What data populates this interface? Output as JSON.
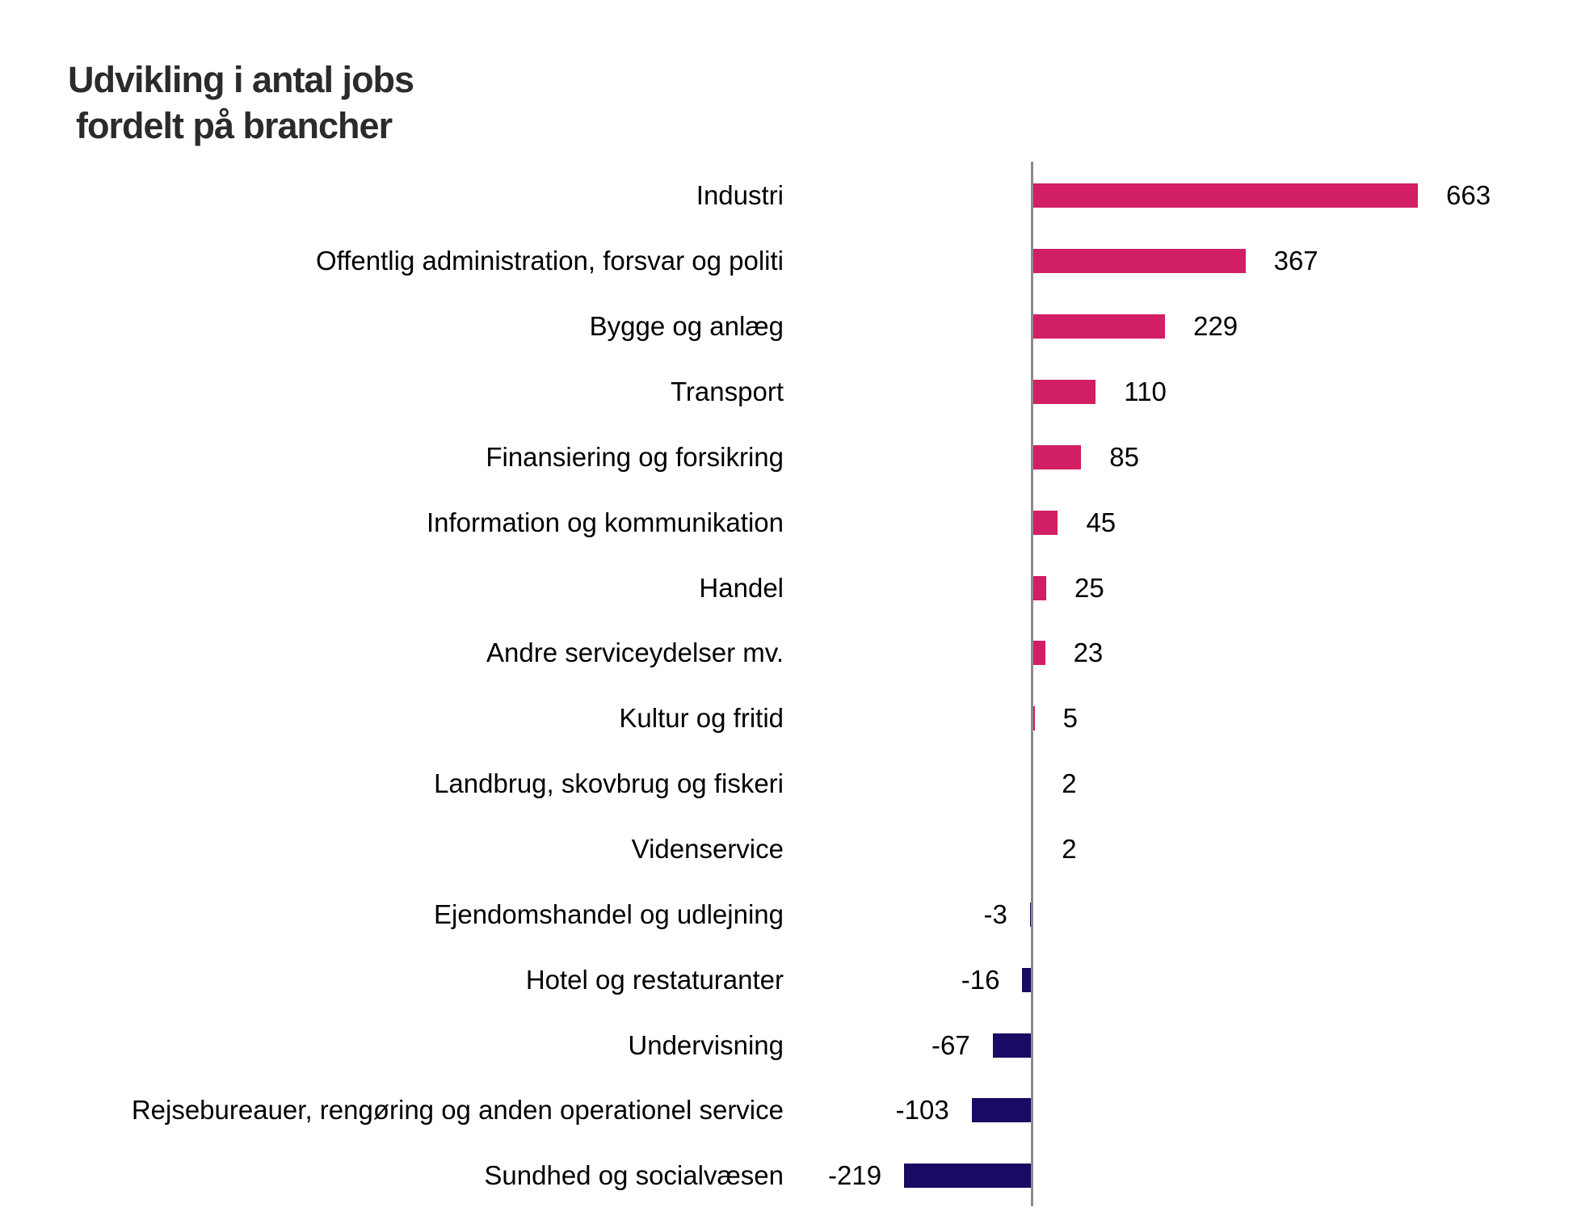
{
  "title": {
    "line1": "Udvikling i antal jobs",
    "line2": "fordelt på brancher"
  },
  "chart_data": {
    "type": "bar",
    "orientation": "horizontal",
    "title": "Udvikling i antal jobs fordelt på brancher",
    "xlabel": "",
    "ylabel": "",
    "grid": false,
    "legend": "none",
    "categories": [
      "Industri",
      "Offentlig administration, forsvar og politi",
      "Bygge og anlæg",
      "Transport",
      "Finansiering og forsikring",
      "Information og kommunikation",
      "Handel",
      "Andre serviceydelser  mv.",
      "Kultur og fritid",
      "Landbrug, skovbrug og fiskeri",
      "Videnservice",
      "Ejendomshandel og udlejning",
      "Hotel og restaturanter",
      "Undervisning",
      "Rejsebureauer, rengøring og anden operationel service",
      "Sundhed og socialvæsen"
    ],
    "values": [
      663,
      367,
      229,
      110,
      85,
      45,
      25,
      23,
      5,
      2,
      2,
      -3,
      -16,
      -67,
      -103,
      -219
    ],
    "value_labels": [
      "663",
      "367",
      "229",
      "110",
      "85",
      "45",
      "25",
      "23",
      "5",
      "2",
      "2",
      "-3",
      "-16",
      "-67",
      "-103",
      "-219"
    ],
    "colors": {
      "positive": "#D21E64",
      "negative": "#190A64",
      "axis_line": "#8C8C8C",
      "label_text": "#000000",
      "title_text": "#2B2B2B"
    }
  }
}
